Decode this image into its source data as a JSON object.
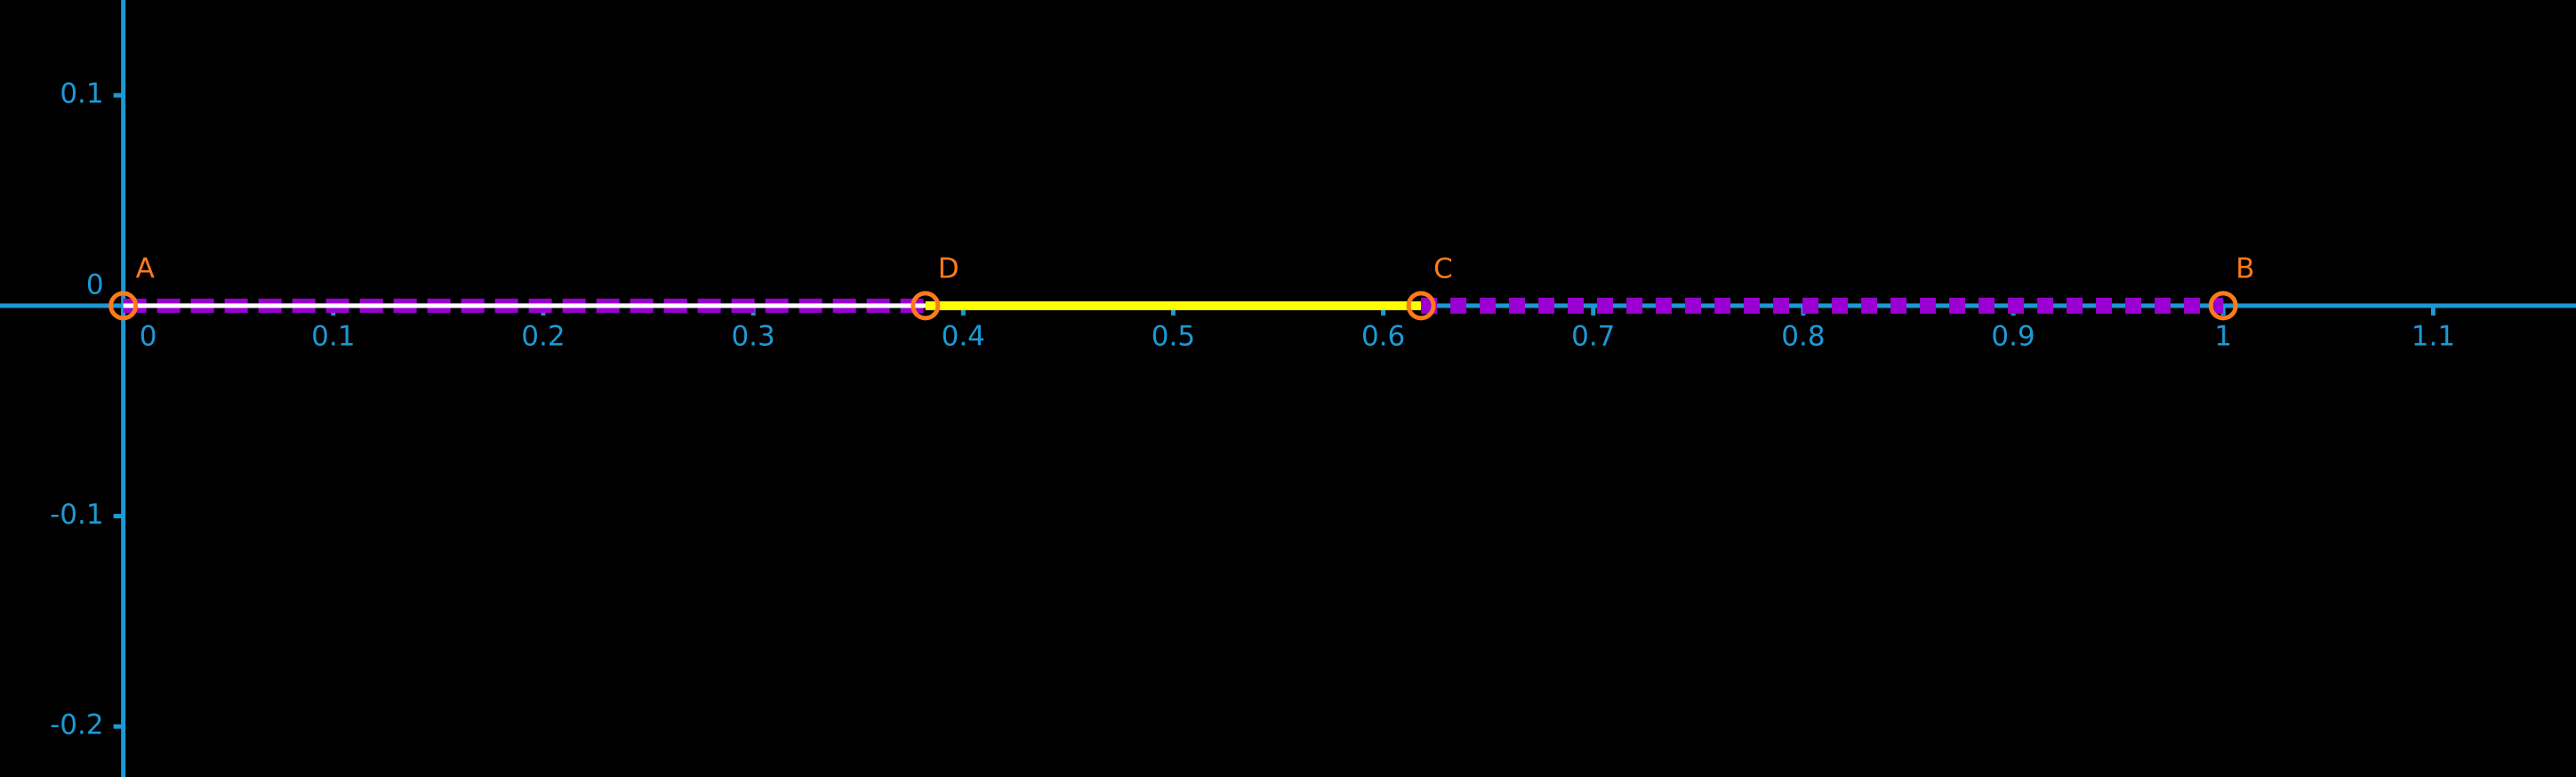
{
  "chart_data": {
    "type": "geometry",
    "xlim": [
      -0.0587,
      1.168
    ],
    "ylim": [
      -0.224,
      0.1453
    ],
    "xticks": [
      0,
      0.1,
      0.2,
      0.3,
      0.4,
      0.5,
      0.6,
      0.7,
      0.8,
      0.9,
      1,
      1.1
    ],
    "yticks": [
      -0.2,
      -0.1,
      0,
      0.1
    ],
    "axis_color": "#1b9ad6",
    "points": [
      {
        "label": "A",
        "x": 0,
        "y": 0,
        "color": "#ff7a1a"
      },
      {
        "label": "D",
        "x": 0.382,
        "y": 0,
        "color": "#ff7a1a"
      },
      {
        "label": "C",
        "x": 0.618,
        "y": 0,
        "color": "#ff7a1a"
      },
      {
        "label": "B",
        "x": 1,
        "y": 0,
        "color": "#ff7a1a"
      }
    ],
    "segments": [
      {
        "color": "#9b00d3",
        "style": "dashed"
      },
      {
        "color": "#ffff00",
        "style": "solid"
      },
      {
        "color": "#9b00d3",
        "style": "dotted"
      }
    ]
  }
}
